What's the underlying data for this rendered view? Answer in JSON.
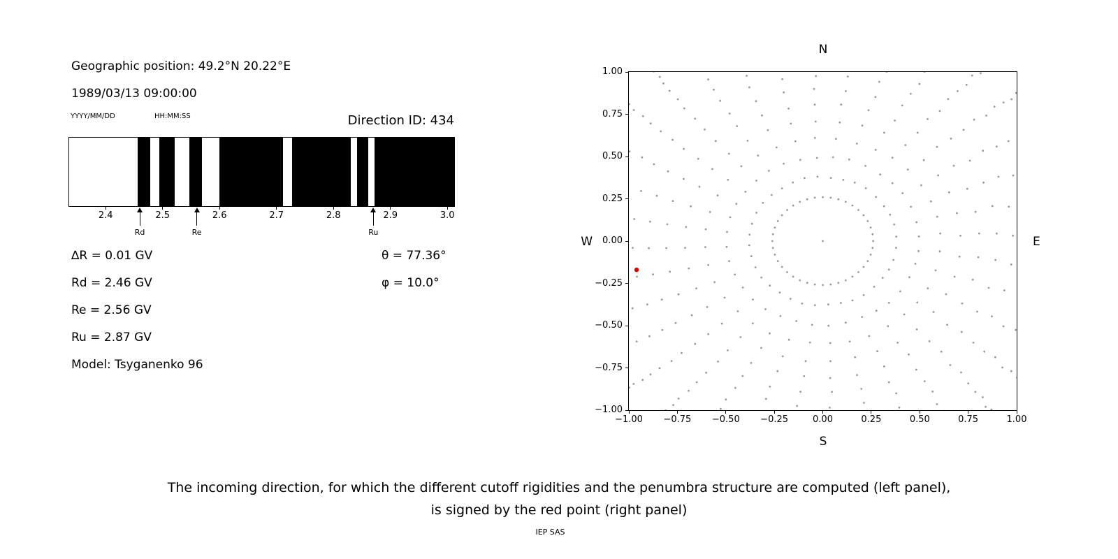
{
  "left_panel": {
    "geo_position": "Geographic position: 49.2°N 20.22°E",
    "datetime": "1989/03/13 09:00:00",
    "date_format_label": "YYYY/MM/DD",
    "time_format_label": "HH:MM:SS",
    "direction_id": "Direction ID: 434",
    "values": {
      "delta_r": "∆R = 0.01 GV",
      "theta": "θ = 77.36°",
      "rd": "Rd = 2.46 GV",
      "phi": "φ = 10.0°",
      "re": "Re = 2.56 GV",
      "ru": "Ru = 2.87 GV",
      "model": "Model: Tsyganenko 96"
    }
  },
  "caption": {
    "line1": "The incoming direction, for which the different cutoff rigidities and the penumbra structure are computed (left panel),",
    "line2": "is signed by the red point (right panel)",
    "credit": "IEP SAS"
  },
  "chart_data": [
    {
      "id": "penumbra-structure",
      "type": "bar",
      "title": "",
      "xlim": [
        2.336,
        3.012
      ],
      "xticks": [
        2.4,
        2.5,
        2.6,
        2.7,
        2.8,
        2.9,
        3.0
      ],
      "xtick_labels": [
        "2.4",
        "2.5",
        "2.6",
        "2.7",
        "2.8",
        "2.9",
        "3.0"
      ],
      "band_color": "#000000",
      "allowed_bands_gv": [
        [
          2.456,
          2.478
        ],
        [
          2.494,
          2.521
        ],
        [
          2.547,
          2.569
        ],
        [
          2.6,
          2.712
        ],
        [
          2.727,
          2.831
        ],
        [
          2.842,
          2.861
        ],
        [
          2.872,
          3.012
        ]
      ],
      "markers": [
        {
          "label": "Rd",
          "x": 2.46
        },
        {
          "label": "Re",
          "x": 2.56
        },
        {
          "label": "Ru",
          "x": 2.87
        }
      ],
      "grid": false
    },
    {
      "id": "asymptotic-directions",
      "type": "scatter",
      "title": "",
      "xlim": [
        -1.0,
        1.0
      ],
      "ylim": [
        -1.0,
        1.0
      ],
      "xtick_labels": [
        "−1.00",
        "−0.75",
        "−0.50",
        "−0.25",
        "0.00",
        "0.25",
        "0.50",
        "0.75",
        "1.00"
      ],
      "ytick_labels": [
        "1.00",
        "0.75",
        "0.50",
        "0.25",
        "0.00",
        "−0.25",
        "−0.50",
        "−0.75",
        "−1.00"
      ],
      "compass_labels": {
        "top": "N",
        "bottom": "S",
        "left": "W",
        "right": "E"
      },
      "dot_color": "#9a9a9a",
      "dot_radius_px": 1.4,
      "center_point": [
        0,
        0
      ],
      "inner_ring": {
        "center": [
          0,
          0
        ],
        "radius": 0.26,
        "points": 40
      },
      "spokes": {
        "count": 36,
        "start_deg": 0,
        "step_deg": 10,
        "r_start": 0.38,
        "r_end": 1.38,
        "points_per_spoke": 16,
        "density_power": 1.8,
        "curvature_deg": 4
      },
      "red_point": {
        "x": -0.96,
        "y": -0.17,
        "color": "#e00000",
        "radius_px": 3.2
      },
      "grid": false,
      "legend": null
    }
  ]
}
